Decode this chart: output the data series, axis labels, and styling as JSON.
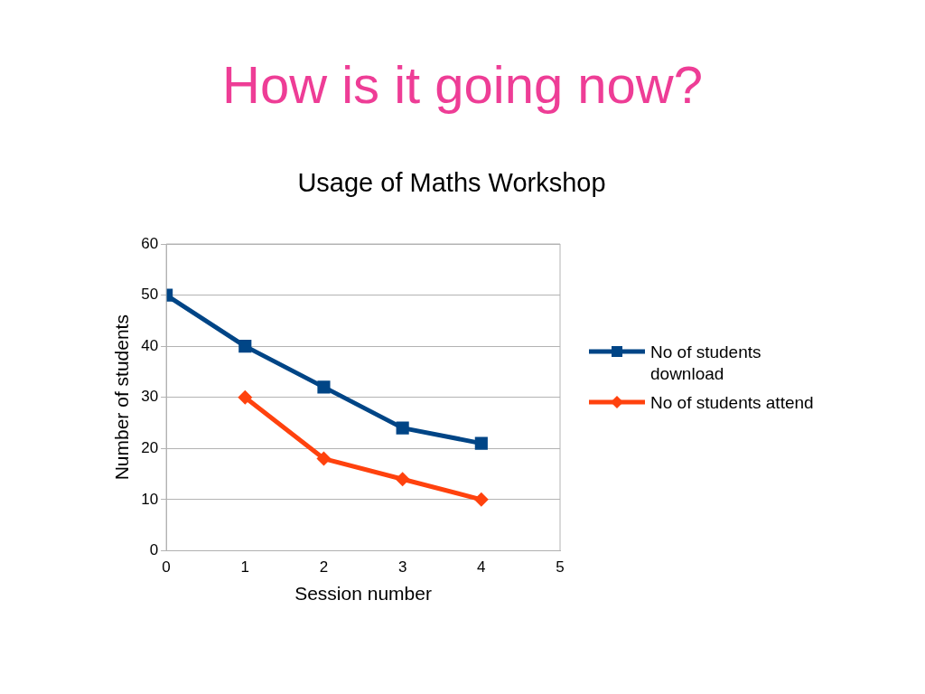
{
  "chart_data": {
    "type": "line",
    "title": "How is it going now?",
    "subtitle": "Usage of Maths Workshop",
    "xlabel": "Session number",
    "ylabel": "Number of students",
    "xlim": [
      0,
      5
    ],
    "xticks": [
      0,
      1,
      2,
      3,
      4,
      5
    ],
    "ylim": [
      0,
      60
    ],
    "yticks": [
      0,
      10,
      20,
      30,
      40,
      50,
      60
    ],
    "grid": "y",
    "legend": "right",
    "line_style": "solid",
    "series": [
      {
        "name": "No of students download",
        "color": "#004586",
        "marker": "square",
        "x": [
          0,
          1,
          2,
          3,
          4
        ],
        "values": [
          50,
          40,
          32,
          24,
          21
        ]
      },
      {
        "name": "No of students attend",
        "color": "#ff420e",
        "marker": "diamond",
        "x": [
          1,
          2,
          3,
          4
        ],
        "values": [
          30,
          18,
          14,
          10
        ]
      }
    ]
  }
}
